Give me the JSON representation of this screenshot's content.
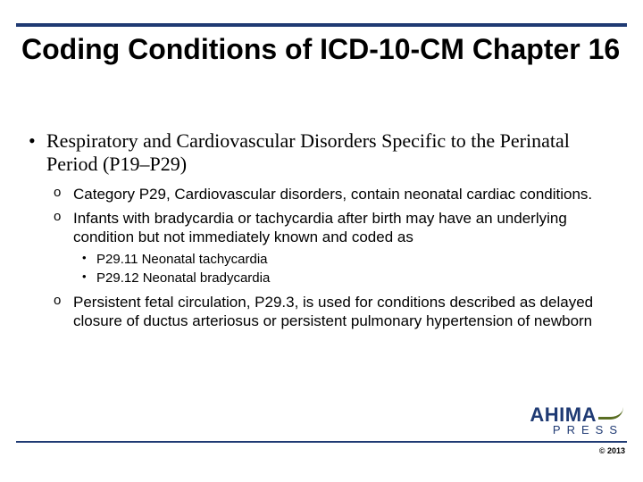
{
  "title": "Coding Conditions of ICD-10-CM Chapter 16",
  "bullet1": "Respiratory and Cardiovascular Disorders Specific to the Perinatal Period (P19–P29)",
  "sub1": "Category P29, Cardiovascular disorders, contain neonatal cardiac conditions.",
  "sub2": "Infants with bradycardia or tachycardia after birth may have an underlying condition but not immediately known and coded as",
  "sub2a": "P29.11 Neonatal tachycardia",
  "sub2b": "P29.12 Neonatal bradycardia",
  "sub3": "Persistent fetal circulation, P29.3, is  used for conditions described as delayed closure of ductus arteriosus or persistent pulmonary hypertension of newborn",
  "logo_top": "AHIMA",
  "logo_bottom": "PRESS",
  "copyright": "© 2013",
  "colors": {
    "rule": "#1f3a73",
    "swoosh": "#5a6e23"
  }
}
